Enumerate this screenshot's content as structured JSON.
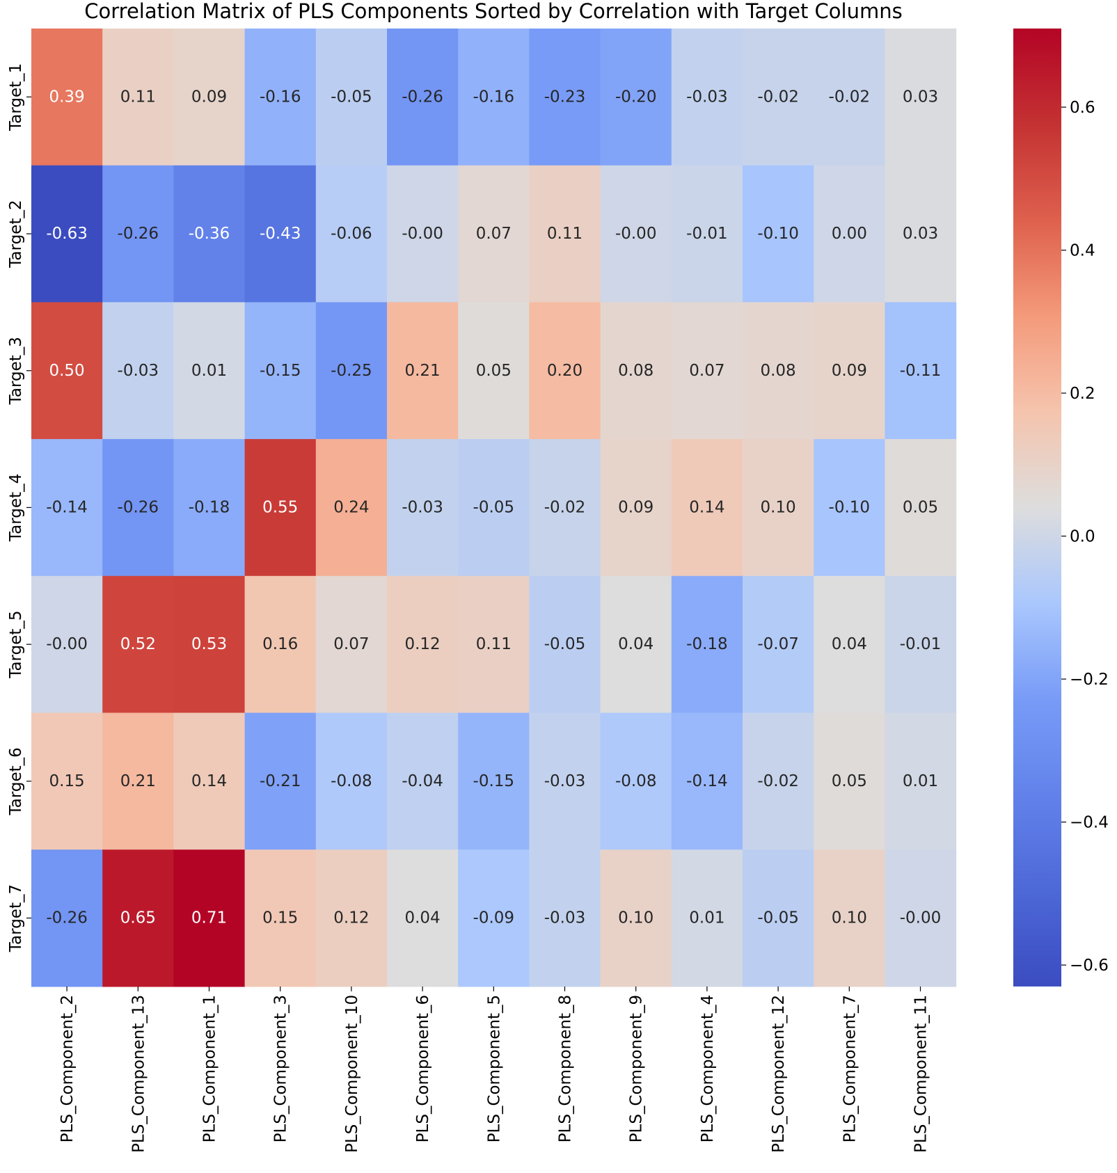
{
  "chart_data": {
    "type": "heatmap",
    "title": "Correlation Matrix of PLS Components Sorted by Correlation with Target Columns",
    "xlabel": "",
    "ylabel": "",
    "columns": [
      "PLS_Component_2",
      "PLS_Component_13",
      "PLS_Component_1",
      "PLS_Component_3",
      "PLS_Component_10",
      "PLS_Component_6",
      "PLS_Component_5",
      "PLS_Component_8",
      "PLS_Component_9",
      "PLS_Component_4",
      "PLS_Component_12",
      "PLS_Component_7",
      "PLS_Component_11"
    ],
    "rows": [
      "Target_1",
      "Target_2",
      "Target_3",
      "Target_4",
      "Target_5",
      "Target_6",
      "Target_7"
    ],
    "values": [
      [
        0.39,
        0.11,
        0.09,
        -0.16,
        -0.05,
        -0.26,
        -0.16,
        -0.23,
        -0.2,
        -0.03,
        -0.02,
        -0.02,
        0.03
      ],
      [
        -0.63,
        -0.26,
        -0.36,
        -0.43,
        -0.06,
        -0.0,
        0.07,
        0.11,
        -0.0,
        -0.01,
        -0.1,
        0.0,
        0.03
      ],
      [
        0.5,
        -0.03,
        0.01,
        -0.15,
        -0.25,
        0.21,
        0.05,
        0.2,
        0.08,
        0.07,
        0.08,
        0.09,
        -0.11
      ],
      [
        -0.14,
        -0.26,
        -0.18,
        0.55,
        0.24,
        -0.03,
        -0.05,
        -0.02,
        0.09,
        0.14,
        0.1,
        -0.1,
        0.05
      ],
      [
        -0.0,
        0.52,
        0.53,
        0.16,
        0.07,
        0.12,
        0.11,
        -0.05,
        0.04,
        -0.18,
        -0.07,
        0.04,
        -0.01
      ],
      [
        0.15,
        0.21,
        0.14,
        -0.21,
        -0.08,
        -0.04,
        -0.15,
        -0.03,
        -0.08,
        -0.14,
        -0.02,
        0.05,
        0.01
      ],
      [
        -0.26,
        0.65,
        0.71,
        0.15,
        0.12,
        0.04,
        -0.09,
        -0.03,
        0.1,
        0.01,
        -0.05,
        0.1,
        -0.0
      ]
    ],
    "value_labels": [
      [
        "0.39",
        "0.11",
        "0.09",
        "-0.16",
        "-0.05",
        "-0.26",
        "-0.16",
        "-0.23",
        "-0.20",
        "-0.03",
        "-0.02",
        "-0.02",
        "0.03"
      ],
      [
        "-0.63",
        "-0.26",
        "-0.36",
        "-0.43",
        "-0.06",
        "-0.00",
        "0.07",
        "0.11",
        "-0.00",
        "-0.01",
        "-0.10",
        "0.00",
        "0.03"
      ],
      [
        "0.50",
        "-0.03",
        "0.01",
        "-0.15",
        "-0.25",
        "0.21",
        "0.05",
        "0.20",
        "0.08",
        "0.07",
        "0.08",
        "0.09",
        "-0.11"
      ],
      [
        "-0.14",
        "-0.26",
        "-0.18",
        "0.55",
        "0.24",
        "-0.03",
        "-0.05",
        "-0.02",
        "0.09",
        "0.14",
        "0.10",
        "-0.10",
        "0.05"
      ],
      [
        "-0.00",
        "0.52",
        "0.53",
        "0.16",
        "0.07",
        "0.12",
        "0.11",
        "-0.05",
        "0.04",
        "-0.18",
        "-0.07",
        "0.04",
        "-0.01"
      ],
      [
        "0.15",
        "0.21",
        "0.14",
        "-0.21",
        "-0.08",
        "-0.04",
        "-0.15",
        "-0.03",
        "-0.08",
        "-0.14",
        "-0.02",
        "0.05",
        "0.01"
      ],
      [
        "-0.26",
        "0.65",
        "0.71",
        "0.15",
        "0.12",
        "0.04",
        "-0.09",
        "-0.03",
        "0.10",
        "0.01",
        "-0.05",
        "0.10",
        "-0.00"
      ]
    ],
    "colormap": "coolwarm",
    "color_range": [
      -0.63,
      0.71
    ],
    "colorbar_ticks": [
      0.6,
      0.4,
      0.2,
      0.0,
      -0.2,
      -0.4,
      -0.6
    ],
    "colorbar_tick_labels": [
      "0.6",
      "0.4",
      "0.2",
      "0.0",
      "−0.2",
      "−0.4",
      "−0.6"
    ],
    "colorbar_position": "right",
    "grid": false
  }
}
